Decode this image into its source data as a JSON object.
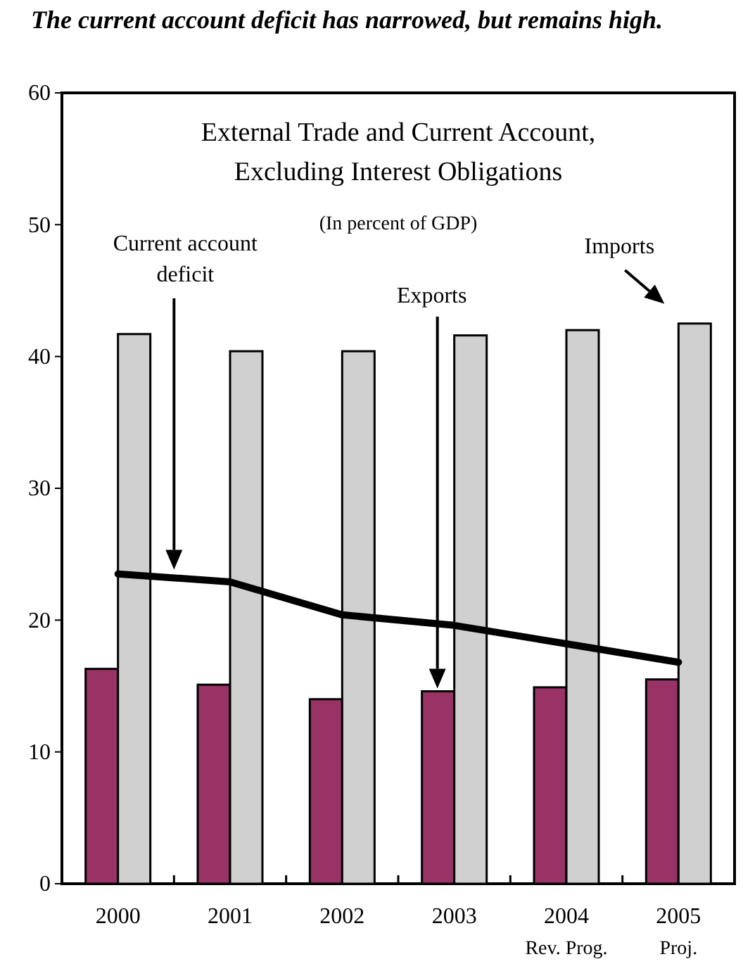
{
  "chart_data": {
    "type": "bar",
    "title": "The current account deficit has narrowed, but remains high.",
    "subtitle": "External Trade and Current Account, Excluding Interest Obligations",
    "annotations": [
      "(In percent of GDP)",
      "Rev. Prog.",
      "Proj.",
      "Current account deficit",
      "Exports",
      "Imports"
    ],
    "categories": [
      "2000",
      "2001",
      "2002",
      "2003",
      "2004",
      "2005"
    ],
    "series": [
      {
        "color": "#993366",
        "values": [
          16.3,
          15.1,
          14.0,
          14.6,
          14.9,
          15.5
        ]
      },
      {
        "color": "#d0d0d0",
        "values": [
          41.7,
          40.4,
          40.4,
          41.6,
          42.0,
          42.5
        ]
      },
      {
        "type": "line",
        "color": "#000000",
        "values": [
          23.5,
          22.9,
          20.4,
          19.6,
          18.2,
          16.8
        ]
      }
    ],
    "ylim": [
      0,
      60
    ],
    "yticks": [
      0,
      10,
      20,
      30,
      40,
      50,
      60
    ],
    "grid": false
  }
}
